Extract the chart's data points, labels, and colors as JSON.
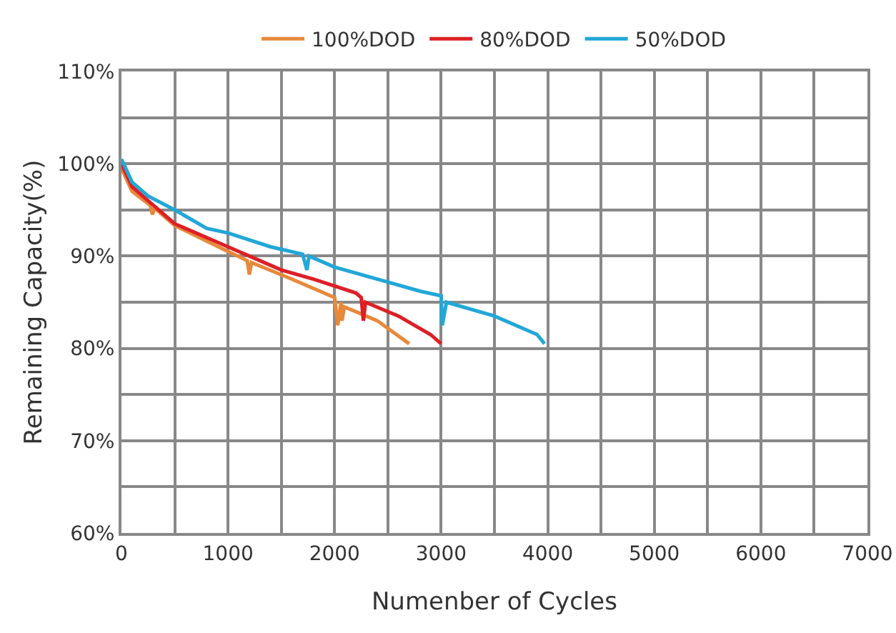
{
  "chart_data": {
    "type": "line",
    "xlabel": "Numenber of Cycles",
    "ylabel": "Remaining Capacity(%)",
    "xlim": [
      0,
      7000
    ],
    "xticks": [
      0,
      1000,
      2000,
      3000,
      4000,
      5000,
      6000,
      7000
    ],
    "ylim": [
      60,
      110
    ],
    "yticks": [
      {
        "value": 60,
        "label": "60%"
      },
      {
        "value": 70,
        "label": "70%"
      },
      {
        "value": 80,
        "label": "80%"
      },
      {
        "value": 90,
        "label": "90%"
      },
      {
        "value": 100,
        "label": "100%"
      },
      {
        "value": 110,
        "label": "110%"
      }
    ],
    "grid": true,
    "legend": "top",
    "marker": "none",
    "line_style": "solid",
    "series": [
      {
        "name": "100%DOD",
        "color": "#e8883a",
        "x": [
          0,
          100,
          270,
          290,
          310,
          500,
          1000,
          1180,
          1200,
          1220,
          1600,
          2000,
          2030,
          2060,
          2070,
          2090,
          2400,
          2700
        ],
        "values": [
          99.5,
          97,
          95.5,
          94.5,
          95.2,
          93.3,
          90.5,
          89.5,
          88,
          89.3,
          87.5,
          85.5,
          82.5,
          85,
          83,
          84.5,
          83,
          80.5
        ]
      },
      {
        "name": "80%DOD",
        "color": "#dd1f26",
        "x": [
          0,
          100,
          300,
          500,
          1000,
          1300,
          1500,
          1800,
          2200,
          2250,
          2270,
          2290,
          2600,
          2900,
          3000
        ],
        "values": [
          100,
          97.5,
          95.5,
          93.5,
          91,
          89.5,
          88.5,
          87.5,
          86,
          85.5,
          83,
          85,
          83.5,
          81.5,
          80.5
        ]
      },
      {
        "name": "50%DOD",
        "color": "#22a7d8",
        "x": [
          0,
          100,
          250,
          500,
          800,
          1000,
          1400,
          1700,
          1740,
          1760,
          2000,
          2400,
          2800,
          3000,
          3010,
          3050,
          3500,
          3900,
          3970
        ],
        "values": [
          100.5,
          98,
          96.5,
          95,
          93,
          92.5,
          91,
          90.2,
          88.5,
          90,
          88.8,
          87.5,
          86.2,
          85.7,
          82.5,
          85,
          83.5,
          81.5,
          80.5
        ]
      }
    ]
  }
}
